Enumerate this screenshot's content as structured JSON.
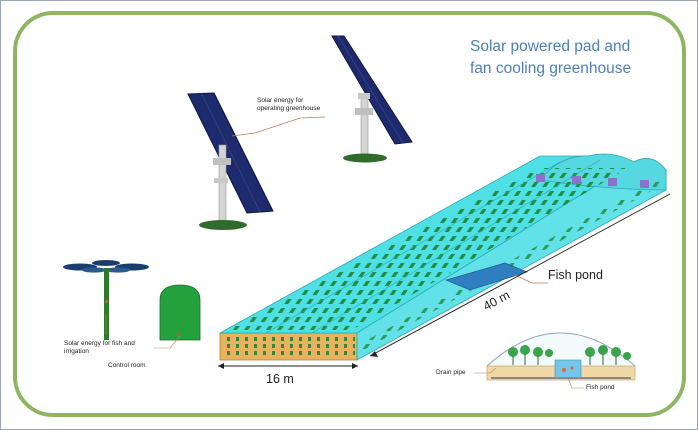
{
  "figure": {
    "title_line1": "Solar powered pad and",
    "title_line2": "fan cooling greenhouse",
    "labels": {
      "solar_greenhouse": "Solar energy for operating greenhouse",
      "solar_fish": "Solar energy for fish and irrigation",
      "control_room": "Control room",
      "fish_pond": "Fish pond",
      "width": "16 m",
      "length": "40 m",
      "drain_pipe": "Drain pipe",
      "fish_pond_small": "Fish pond"
    },
    "colors": {
      "border_green": "#8fb563",
      "greenhouse_cyan": "#4fe0e6",
      "plant_green": "#1f8a3a",
      "soil_orange": "#e8b35e",
      "pond_blue": "#2f7fc0",
      "title_blue": "#4f7fb6",
      "solar_panel": "#1e2a6e"
    }
  }
}
